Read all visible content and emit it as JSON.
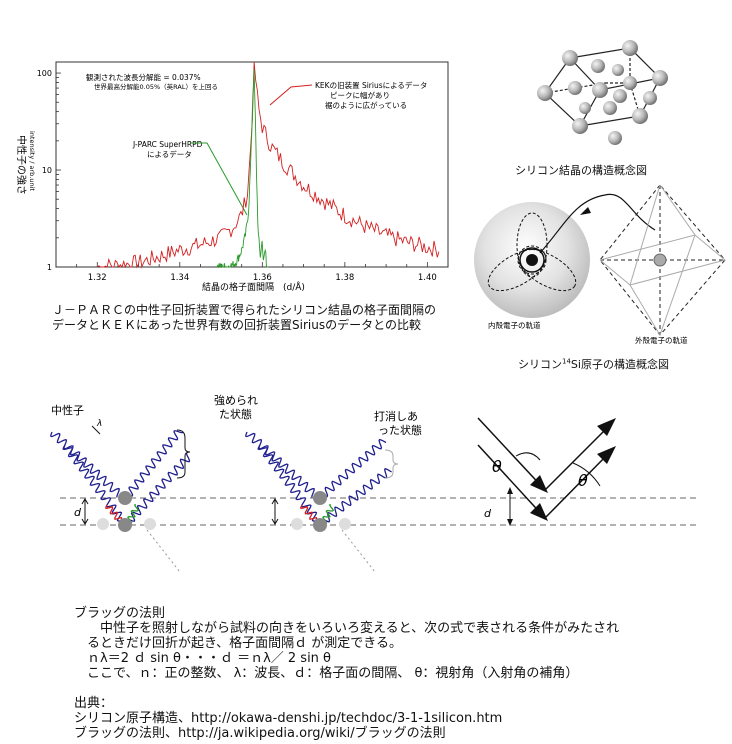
{
  "chart": {
    "ylabel_main": "中性子の強さ",
    "ylabel_sub": "intensity / arb.unit",
    "xlabel": "結晶の格子面間隔　(d/Å)",
    "x_ticks": [
      "1.32",
      "1.34",
      "1.36",
      "1.38",
      "1.40"
    ],
    "y_ticks": [
      "100",
      "10",
      "1"
    ],
    "resolution_line1": "観測された波長分解能 = 0.037%",
    "resolution_line2": "世界最高分解能0.05%（英RAL）を上回る",
    "kek_line1": "KEKの旧装置 Siriusによるデータ",
    "kek_line2": "ピークに幅があり",
    "kek_line3": "裾のように広がっている",
    "jparc_line1": "J-PARC SuperHRPD",
    "jparc_line2": "によるデータ",
    "caption_line1": "Ｊ－ＰＡＲＣの中性子回折装置で得られたシリコン結晶の格子面間隔の",
    "caption_line2": "データとＫＥＫにあった世界有数の回折装置Siriusのデータとの比較"
  },
  "chart_data": {
    "type": "line",
    "xlim": [
      1.31,
      1.405
    ],
    "ylim": [
      1,
      130
    ],
    "yscale": "log",
    "series": [
      {
        "x": [
          1.32,
          1.33,
          1.34,
          1.345,
          1.35,
          1.353,
          1.355,
          1.3565,
          1.3575,
          1.358,
          1.3585,
          1.359,
          1.36,
          1.362,
          1.365,
          1.37,
          1.375,
          1.38,
          1.385,
          1.39,
          1.395,
          1.4,
          1.403
        ],
        "y": [
          1,
          1.1,
          1.5,
          1.7,
          2.0,
          2.6,
          3.5,
          6,
          30,
          110,
          80,
          45,
          28,
          18,
          12,
          7,
          4.8,
          3.4,
          2.6,
          2.1,
          1.8,
          1.6,
          1.5
        ],
        "color": "#d42020"
      },
      {
        "x": [
          1.349,
          1.351,
          1.353,
          1.354,
          1.355,
          1.356,
          1.3567,
          1.3572,
          1.3577,
          1.358,
          1.3583,
          1.3587,
          1.359,
          1.3595,
          1.36,
          1.3603,
          1.3608,
          1.361,
          1.3615
        ],
        "y": [
          1,
          1,
          1.05,
          1.2,
          1.5,
          2.2,
          4,
          12,
          60,
          100,
          35,
          6,
          2.2,
          1.3,
          1.9,
          1.1,
          1.6,
          1,
          1
        ],
        "color": "#2a9a2a"
      }
    ]
  },
  "structure": {
    "crystal_label": "シリコン結晶の構造概念図",
    "inner_label": "内殻電子の軌道",
    "outer_label": "外殻電子の軌道",
    "atom_label_pre": "シリコン",
    "atom_label_sup": "14",
    "atom_label_post": "Si原子の構造概念図"
  },
  "waves": {
    "neutron": "中性子",
    "lambda": "λ",
    "d": "d",
    "theta": "θ",
    "strong_line1": "強められ",
    "strong_line2": "た状態",
    "cancel_line1": "打消しあ",
    "cancel_line2": "った状態"
  },
  "bragg": {
    "title": "ブラッグの法則",
    "line1": "　　中性子を照射しながら試料の向きをいろいろ変えると、次の式で表される条件がみたされ",
    "line2": "　るときだけ回折が起き、格子面間隔ｄ が測定できる。",
    "line3": "　ｎλ＝2 ｄ sin θ・・・ｄ ＝ｎλ／ 2  sin θ",
    "line4": "　ここで、ｎ：正の整数、 λ：波長、ｄ：格子面の間隔、 θ：視射角（入射角の補角）",
    "source_title": "出典：",
    "source1": "シリコン原子構造、http://okawa-denshi.jp/techdoc/3-1-1silicon.htm",
    "source2": "ブラッグの法則、http://ja.wikipedia.org/wiki/ブラッグの法則"
  }
}
